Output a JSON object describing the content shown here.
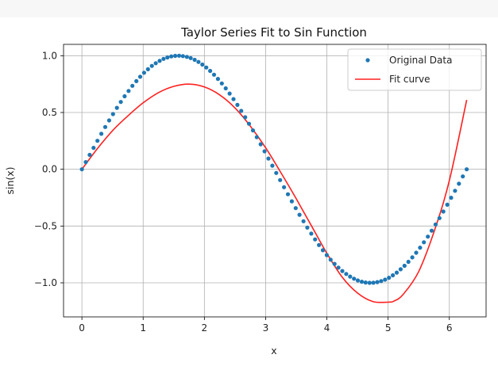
{
  "chart_data": {
    "type": "line",
    "title": "Taylor Series Fit to Sin Function",
    "xlabel": "x",
    "ylabel": "sin(x)",
    "xlim": [
      -0.3,
      6.6
    ],
    "ylim": [
      -1.3,
      1.1
    ],
    "xticks": [
      0,
      1,
      2,
      3,
      4,
      5,
      6
    ],
    "xtick_labels": [
      "0",
      "1",
      "2",
      "3",
      "4",
      "5",
      "6"
    ],
    "yticks": [
      1.0,
      0.5,
      0.0,
      -0.5,
      -1.0
    ],
    "ytick_labels": [
      "1.0",
      "0.5",
      "0.0",
      "−0.5",
      "−1.0"
    ],
    "grid": true,
    "legend_position": "top-right",
    "colors": {
      "data": "#1f77b4",
      "fit": "#ff2020"
    },
    "series": [
      {
        "name": "Original Data",
        "kind": "scatter",
        "x": [
          0.0,
          0.063,
          0.127,
          0.19,
          0.254,
          0.317,
          0.381,
          0.444,
          0.508,
          0.571,
          0.635,
          0.698,
          0.762,
          0.825,
          0.889,
          0.952,
          1.015,
          1.079,
          1.142,
          1.206,
          1.269,
          1.333,
          1.396,
          1.46,
          1.523,
          1.587,
          1.65,
          1.714,
          1.777,
          1.841,
          1.904,
          1.967,
          2.031,
          2.094,
          2.158,
          2.221,
          2.285,
          2.348,
          2.412,
          2.475,
          2.539,
          2.602,
          2.666,
          2.729,
          2.793,
          2.856,
          2.919,
          2.983,
          3.046,
          3.11,
          3.173,
          3.237,
          3.3,
          3.364,
          3.427,
          3.491,
          3.554,
          3.618,
          3.681,
          3.745,
          3.808,
          3.871,
          3.935,
          3.998,
          4.062,
          4.125,
          4.189,
          4.252,
          4.316,
          4.379,
          4.443,
          4.506,
          4.57,
          4.633,
          4.697,
          4.76,
          4.823,
          4.887,
          4.95,
          5.014,
          5.077,
          5.141,
          5.204,
          5.268,
          5.331,
          5.395,
          5.458,
          5.522,
          5.585,
          5.649,
          5.712,
          5.775,
          5.839,
          5.902,
          5.966,
          6.029,
          6.093,
          6.156,
          6.22,
          6.283
        ],
        "y": [
          0.0,
          0.063,
          0.127,
          0.189,
          0.251,
          0.312,
          0.372,
          0.43,
          0.486,
          0.541,
          0.593,
          0.643,
          0.69,
          0.735,
          0.776,
          0.815,
          0.85,
          0.881,
          0.91,
          0.934,
          0.955,
          0.972,
          0.985,
          0.994,
          0.999,
          1.0,
          0.997,
          0.99,
          0.979,
          0.964,
          0.945,
          0.922,
          0.896,
          0.866,
          0.833,
          0.796,
          0.756,
          0.713,
          0.667,
          0.618,
          0.567,
          0.514,
          0.458,
          0.401,
          0.342,
          0.282,
          0.22,
          0.158,
          0.095,
          0.032,
          -0.032,
          -0.095,
          -0.158,
          -0.22,
          -0.282,
          -0.342,
          -0.401,
          -0.458,
          -0.514,
          -0.567,
          -0.618,
          -0.667,
          -0.713,
          -0.756,
          -0.796,
          -0.833,
          -0.866,
          -0.896,
          -0.922,
          -0.945,
          -0.964,
          -0.979,
          -0.99,
          -0.997,
          -1.0,
          -0.999,
          -0.994,
          -0.985,
          -0.972,
          -0.955,
          -0.934,
          -0.91,
          -0.881,
          -0.85,
          -0.815,
          -0.776,
          -0.735,
          -0.69,
          -0.643,
          -0.593,
          -0.541,
          -0.486,
          -0.43,
          -0.372,
          -0.312,
          -0.251,
          -0.189,
          -0.127,
          -0.063,
          0.0
        ]
      },
      {
        "name": "Fit curve",
        "kind": "line",
        "x": [
          0.0,
          0.25,
          0.5,
          0.75,
          1.0,
          1.25,
          1.5,
          1.75,
          2.0,
          2.25,
          2.5,
          2.75,
          3.0,
          3.25,
          3.5,
          3.75,
          4.0,
          4.25,
          4.5,
          4.75,
          5.0,
          5.1,
          5.25,
          5.5,
          5.75,
          6.0,
          6.283
        ],
        "y": [
          0.0,
          0.18,
          0.34,
          0.47,
          0.585,
          0.675,
          0.73,
          0.75,
          0.725,
          0.655,
          0.54,
          0.38,
          0.19,
          -0.03,
          -0.26,
          -0.5,
          -0.74,
          -0.95,
          -1.09,
          -1.165,
          -1.17,
          -1.16,
          -1.1,
          -0.9,
          -0.55,
          -0.1,
          0.61
        ]
      }
    ]
  }
}
